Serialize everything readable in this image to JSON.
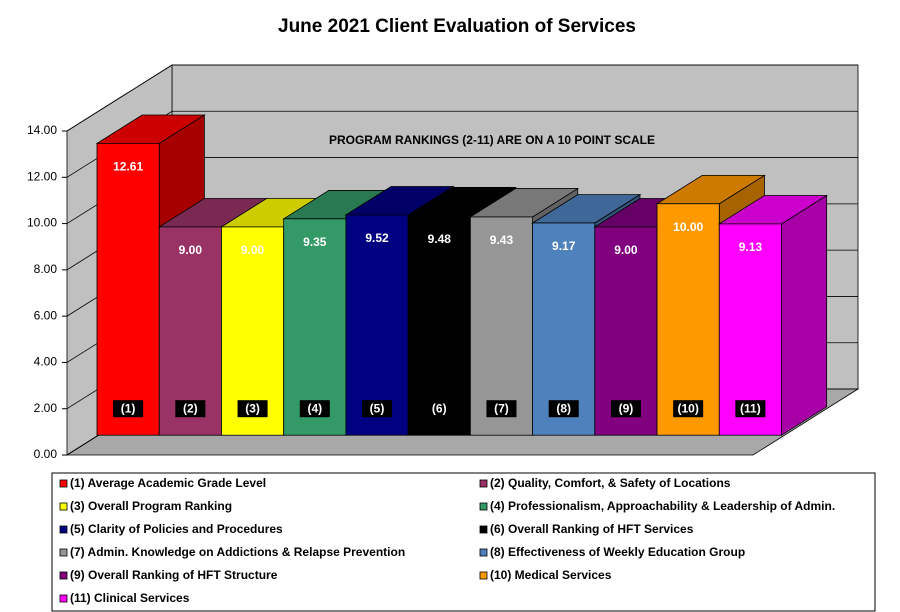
{
  "chart_data": {
    "type": "bar3d",
    "title": "June 2021 Client Evaluation of Services",
    "annotation": "PROGRAM RANKINGS (2-11) ARE ON A 10 POINT SCALE",
    "categories": [
      "(1)",
      "(2)",
      "(3)",
      "(4)",
      "(5)",
      "(6)",
      "(7)",
      "(8)",
      "(9)",
      "(10)",
      "(11)"
    ],
    "values": [
      12.61,
      9,
      9,
      9.35,
      9.52,
      9.48,
      9.43,
      9.17,
      9,
      10,
      9.13
    ],
    "value_labels": [
      "12.61",
      "9.00",
      "9.00",
      "9.35",
      "9.52",
      "9.48",
      "9.43",
      "9.17",
      "9.00",
      "10.00",
      "9.13"
    ],
    "colors": [
      "#ff0000",
      "#993366",
      "#ffff00",
      "#339966",
      "#000080",
      "#000000",
      "#969696",
      "#4f81bd",
      "#800080",
      "#ff9900",
      "#ff00ff"
    ],
    "legend": [
      "(1) Average Academic Grade Level",
      "(2) Quality, Comfort, & Safety of Locations",
      "(3) Overall Program Ranking",
      "(4) Professionalism, Approachability & Leadership of Admin.",
      "(5) Clarity of Policies and Procedures",
      "(6) Overall Ranking of HFT Services",
      "(7) Admin. Knowledge on Addictions & Relapse Prevention",
      "(8) Effectiveness of Weekly Education Group",
      "(9) Overall Ranking of HFT Structure",
      "(10) Medical Services",
      "(11) Clinical Services"
    ],
    "ylim": [
      0,
      14
    ],
    "yticks": [
      {
        "value": 0,
        "label": "0.00"
      },
      {
        "value": 2,
        "label": "2.00"
      },
      {
        "value": 4,
        "label": "4.00"
      },
      {
        "value": 6,
        "label": "6.00"
      },
      {
        "value": 8,
        "label": "8.00"
      },
      {
        "value": 10,
        "label": "10.00"
      },
      {
        "value": 12,
        "label": "12.00"
      },
      {
        "value": 14,
        "label": "14.00"
      }
    ],
    "grid": true
  }
}
